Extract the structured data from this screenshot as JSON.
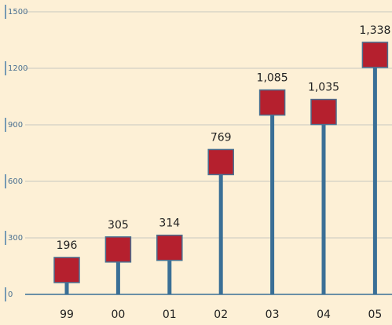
{
  "chart_data": {
    "type": "lollipop",
    "categories": [
      "99",
      "00",
      "01",
      "02",
      "03",
      "04",
      "05"
    ],
    "values": [
      196,
      305,
      314,
      769,
      1085,
      1035,
      1338
    ],
    "value_labels": [
      "196",
      "305",
      "314",
      "769",
      "1,085",
      "1,035",
      "1,338"
    ],
    "color": "#b5202e",
    "stem_color": "#3a6f96",
    "ylim": [
      0,
      1500
    ],
    "yticks": [
      0,
      300,
      600,
      900,
      1200,
      1500
    ],
    "grid": true
  }
}
